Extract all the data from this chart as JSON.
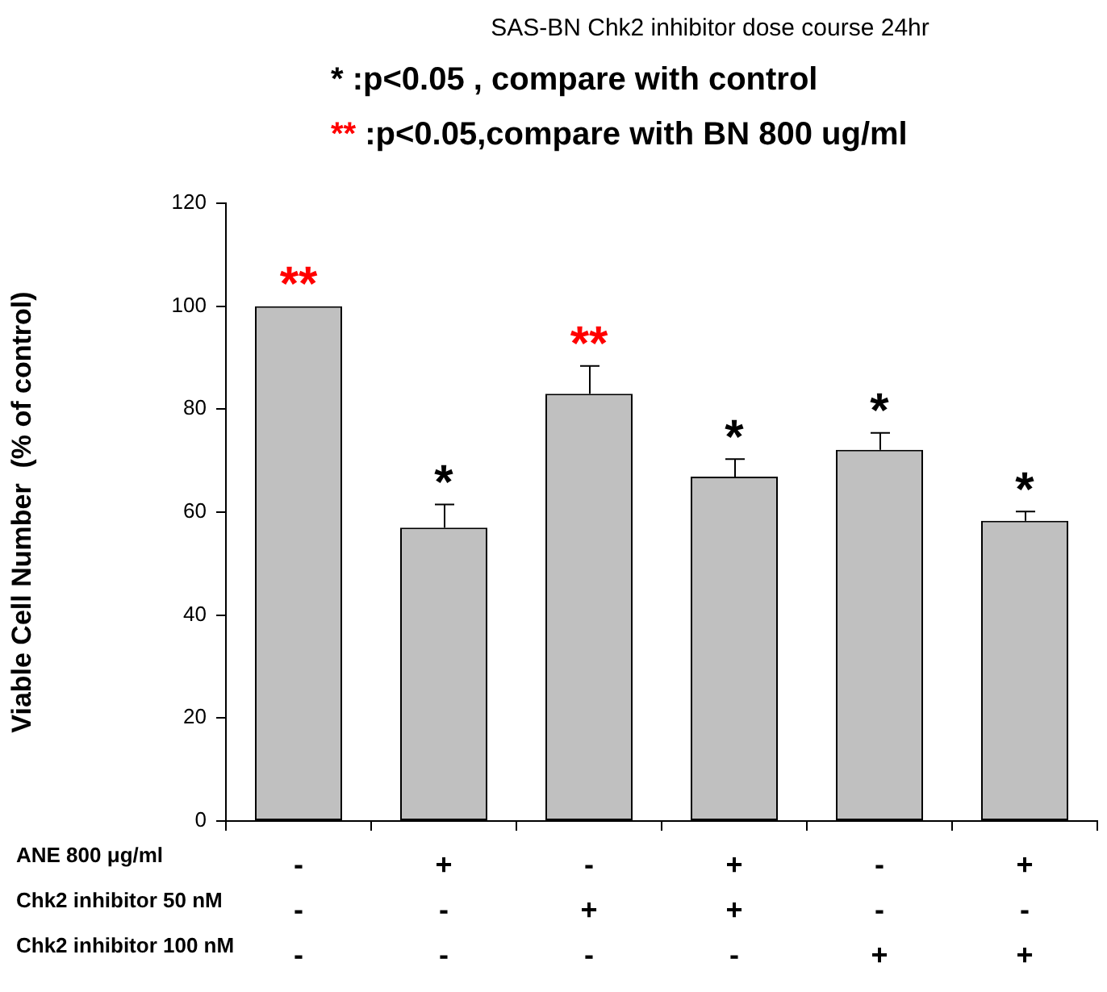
{
  "chart_data": {
    "type": "bar",
    "title": "SAS-BN Chk2 inhibitor dose course 24hr",
    "ylabel": "Viable Cell Number  (% of control)",
    "categories": [
      "-\n-\n-",
      "+\n-\n-",
      "-\n+\n-",
      "+\n+\n-",
      "-\n-\n+",
      "+\n-\n+"
    ],
    "values": [
      100,
      57,
      83,
      66.9,
      72.1,
      58.3
    ],
    "errors": [
      null,
      [
        57,
        61.5
      ],
      [
        83,
        88.4
      ],
      [
        66.9,
        70.3
      ],
      [
        72.1,
        75.4
      ],
      [
        58.3,
        60.1
      ]
    ],
    "color": "#c0c0c0",
    "ylim": [
      0,
      120
    ],
    "yticks": [
      0,
      20,
      40,
      60,
      80,
      100,
      120
    ],
    "grid": false,
    "legend": false,
    "annotations": [
      "* :p<0.05 , compare with control",
      "** :p<0.05,compare with BN 800 ug/ml",
      "ANE 800 μg/ml",
      "Chk2 inhibitor 50 nM",
      "Chk2 inhibitor 100 nM",
      "**",
      "*",
      "**",
      "*",
      "*",
      "*"
    ]
  }
}
